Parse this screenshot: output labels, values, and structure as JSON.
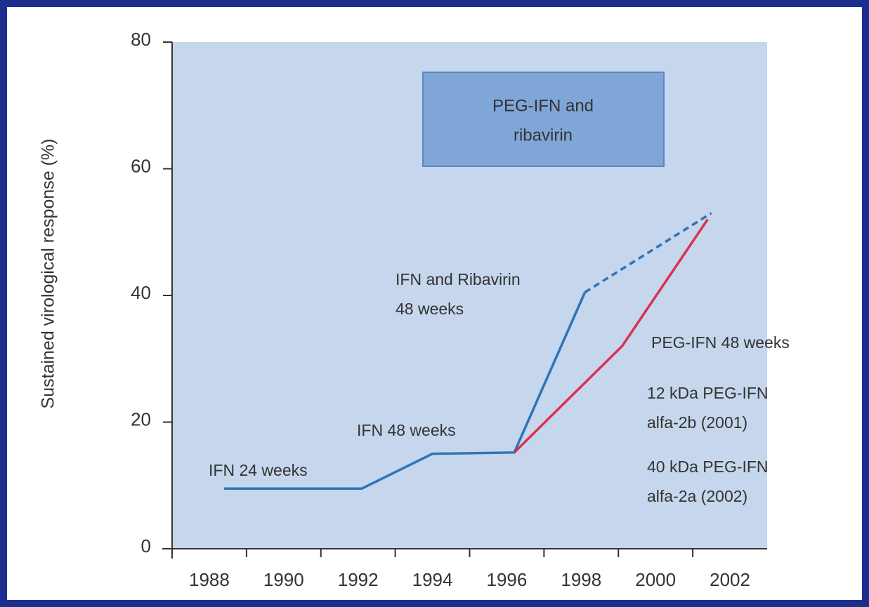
{
  "chart_data": {
    "type": "line",
    "ylabel": "Sustained virological response (%)",
    "xlim": [
      1987,
      2003
    ],
    "xticks": [
      1988,
      1990,
      1992,
      1994,
      1996,
      1998,
      2000,
      2002
    ],
    "minor_xticks": [
      1989,
      1991,
      1993,
      1995,
      1997,
      1999,
      2001
    ],
    "ylim": [
      0,
      80
    ],
    "yticks": [
      0,
      20,
      40,
      60,
      80
    ],
    "background": "#c6d6ec",
    "series": [
      {
        "color": "#2f74b8",
        "style": "solid",
        "x": [
          1988.4,
          1992.1,
          1994.0,
          1996.2,
          1998.1
        ],
        "values": [
          9.5,
          9.5,
          15,
          15.2,
          40.5
        ]
      },
      {
        "color": "#2f74b8",
        "style": "dashed",
        "x": [
          1998.1,
          2001.5
        ],
        "values": [
          40.5,
          53
        ]
      },
      {
        "color": "#d9334d",
        "style": "solid",
        "x": [
          1996.2,
          1999.1,
          2001.4
        ],
        "values": [
          15.2,
          32,
          52
        ]
      }
    ],
    "box_label": [
      "PEG-IFN and",
      "ribavirin"
    ],
    "annotations": [
      [
        "IFN 24 weeks"
      ],
      [
        "IFN 48 weeks"
      ],
      [
        "IFN and Ribavirin",
        "48 weeks"
      ],
      [
        "PEG-IFN 48 weeks"
      ],
      [
        "12 kDa  PEG-IFN",
        "alfa-2b (2001)"
      ],
      [
        "40 kDa  PEG-IFN",
        "alfa-2a (2002)"
      ]
    ]
  }
}
